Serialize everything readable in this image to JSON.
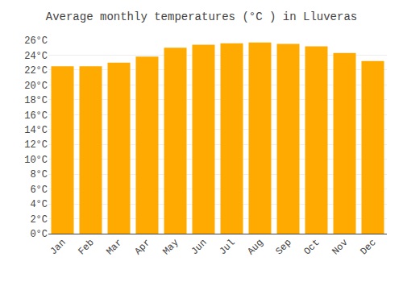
{
  "chart_data": {
    "type": "bar",
    "title": "Average monthly temperatures (°C ) in Lluveras",
    "categories": [
      "Jan",
      "Feb",
      "Mar",
      "Apr",
      "May",
      "Jun",
      "Jul",
      "Aug",
      "Sep",
      "Oct",
      "Nov",
      "Dec"
    ],
    "values": [
      22.5,
      22.5,
      23.0,
      23.8,
      25.0,
      25.4,
      25.6,
      25.7,
      25.5,
      25.2,
      24.3,
      23.2
    ],
    "color": "#FFAA00",
    "ylim": [
      0,
      26
    ],
    "yticks": [
      {
        "value": 0,
        "label": "0°C"
      },
      {
        "value": 2,
        "label": "2°C"
      },
      {
        "value": 4,
        "label": "4°C"
      },
      {
        "value": 6,
        "label": "6°C"
      },
      {
        "value": 8,
        "label": "8°C"
      },
      {
        "value": 10,
        "label": "10°C"
      },
      {
        "value": 12,
        "label": "12°C"
      },
      {
        "value": 14,
        "label": "14°C"
      },
      {
        "value": 16,
        "label": "16°C"
      },
      {
        "value": 18,
        "label": "18°C"
      },
      {
        "value": 20,
        "label": "20°C"
      },
      {
        "value": 22,
        "label": "22°C"
      },
      {
        "value": 24,
        "label": "24°C"
      },
      {
        "value": 26,
        "label": "26°C"
      }
    ],
    "grid": true
  }
}
